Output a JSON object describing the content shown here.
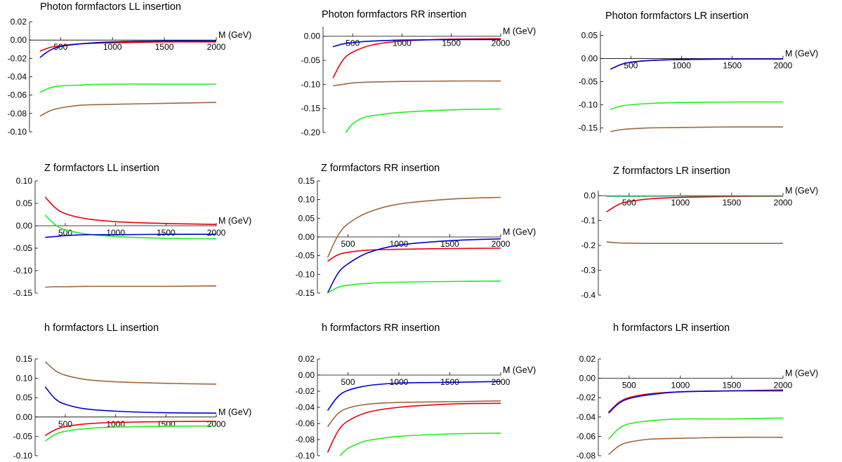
{
  "chart_data": [
    {
      "id": "p_ll",
      "type": "line",
      "title": "Photon formfactors LL insertion",
      "xlabel": "M (GeV)",
      "ylabel": "",
      "xlim": [
        200,
        2000
      ],
      "ylim": [
        -0.1,
        0.02
      ],
      "x_ticks": [
        "500",
        "1000",
        "1500",
        "2000"
      ],
      "y_ticks": [
        "0.02",
        "0.00",
        "-0.02",
        "-0.04",
        "-0.06",
        "-0.08",
        "-0.10"
      ],
      "series": [
        {
          "color": "#e8000b",
          "x": [
            300,
            400,
            500,
            700,
            1000,
            1500,
            2000
          ],
          "y": [
            -0.012,
            -0.008,
            -0.006,
            -0.004,
            -0.003,
            -0.002,
            -0.002
          ]
        },
        {
          "color": "#0000d0",
          "x": [
            300,
            400,
            500,
            700,
            1000,
            1500,
            2000
          ],
          "y": [
            -0.019,
            -0.011,
            -0.007,
            -0.004,
            -0.002,
            -0.001,
            -0.001
          ]
        },
        {
          "color": "#22ee22",
          "x": [
            300,
            400,
            500,
            700,
            1000,
            1500,
            2000
          ],
          "y": [
            -0.057,
            -0.052,
            -0.05,
            -0.049,
            -0.048,
            -0.048,
            -0.048
          ]
        },
        {
          "color": "#a0673c",
          "x": [
            300,
            400,
            500,
            700,
            1000,
            1500,
            2000
          ],
          "y": [
            -0.083,
            -0.077,
            -0.074,
            -0.071,
            -0.07,
            -0.069,
            -0.068
          ]
        }
      ]
    },
    {
      "id": "p_rr",
      "type": "line",
      "title": "Photon formfactors RR insertion",
      "xlabel": "M (GeV)",
      "ylabel": "",
      "xlim": [
        200,
        2000
      ],
      "ylim": [
        -0.2,
        0.02
      ],
      "x_ticks": [
        "500",
        "1000",
        "1500",
        "2000"
      ],
      "y_ticks": [
        "0.00",
        "-0.05",
        "-0.10",
        "-0.15",
        "-0.20"
      ],
      "series": [
        {
          "color": "#e8000b",
          "x": [
            300,
            400,
            500,
            700,
            1000,
            1500,
            2000
          ],
          "y": [
            -0.087,
            -0.05,
            -0.033,
            -0.018,
            -0.01,
            -0.006,
            -0.005
          ]
        },
        {
          "color": "#0000d0",
          "x": [
            300,
            400,
            500,
            700,
            1000,
            1500,
            2000
          ],
          "y": [
            -0.022,
            -0.016,
            -0.013,
            -0.01,
            -0.008,
            -0.007,
            -0.007
          ]
        },
        {
          "color": "#a0673c",
          "x": [
            300,
            400,
            500,
            700,
            1000,
            1500,
            2000
          ],
          "y": [
            -0.103,
            -0.1,
            -0.097,
            -0.095,
            -0.094,
            -0.093,
            -0.093
          ]
        },
        {
          "color": "#22ee22",
          "x": [
            430,
            500,
            600,
            700,
            1000,
            1500,
            2000
          ],
          "y": [
            -0.2,
            -0.182,
            -0.17,
            -0.165,
            -0.158,
            -0.153,
            -0.151
          ]
        }
      ]
    },
    {
      "id": "p_lr",
      "type": "line",
      "title": "Photon formfactors LR insertion",
      "xlabel": "M (GeV)",
      "ylabel": "",
      "xlim": [
        200,
        2000
      ],
      "ylim": [
        -0.16,
        0.06
      ],
      "x_ticks": [
        "500",
        "1000",
        "1500",
        "2000"
      ],
      "y_ticks": [
        "0.05",
        "0.00",
        "-0.05",
        "-0.10",
        "-0.15"
      ],
      "series": [
        {
          "color": "#e8000b",
          "x": [
            300,
            400,
            500,
            700,
            1000,
            1500,
            2000
          ],
          "y": [
            -0.023,
            -0.013,
            -0.008,
            -0.004,
            -0.002,
            -0.001,
            -0.001
          ]
        },
        {
          "color": "#0000d0",
          "x": [
            300,
            400,
            500,
            700,
            1000,
            1500,
            2000
          ],
          "y": [
            -0.023,
            -0.013,
            -0.008,
            -0.004,
            -0.002,
            -0.001,
            -0.001
          ]
        },
        {
          "color": "#22ee22",
          "x": [
            300,
            400,
            500,
            700,
            1000,
            1500,
            2000
          ],
          "y": [
            -0.11,
            -0.103,
            -0.1,
            -0.097,
            -0.095,
            -0.094,
            -0.094
          ]
        },
        {
          "color": "#a0673c",
          "x": [
            300,
            400,
            500,
            700,
            1000,
            1500,
            2000
          ],
          "y": [
            -0.158,
            -0.154,
            -0.152,
            -0.15,
            -0.149,
            -0.148,
            -0.148
          ]
        }
      ]
    },
    {
      "id": "z_ll",
      "type": "line",
      "title": "Z formfactors LL insertion",
      "xlabel": "M (GeV)",
      "ylabel": "",
      "xlim": [
        200,
        2000
      ],
      "ylim": [
        -0.15,
        0.1
      ],
      "x_ticks": [
        "500",
        "1000",
        "1500",
        "2000"
      ],
      "y_ticks": [
        "0.10",
        "0.05",
        "0.00",
        "-0.05",
        "-0.10",
        "-0.15"
      ],
      "series": [
        {
          "color": "#e8000b",
          "x": [
            300,
            400,
            500,
            700,
            1000,
            1500,
            2000
          ],
          "y": [
            0.064,
            0.04,
            0.027,
            0.016,
            0.009,
            0.005,
            0.003
          ]
        },
        {
          "color": "#22ee22",
          "x": [
            300,
            400,
            500,
            700,
            1000,
            1500,
            2000
          ],
          "y": [
            0.024,
            0.002,
            -0.009,
            -0.018,
            -0.024,
            -0.028,
            -0.029
          ]
        },
        {
          "color": "#0000d0",
          "x": [
            300,
            400,
            500,
            700,
            1000,
            1500,
            2000
          ],
          "y": [
            -0.026,
            -0.024,
            -0.022,
            -0.02,
            -0.02,
            -0.019,
            -0.019
          ]
        },
        {
          "color": "#a0673c",
          "x": [
            300,
            400,
            500,
            700,
            1000,
            1500,
            2000
          ],
          "y": [
            -0.137,
            -0.136,
            -0.136,
            -0.135,
            -0.135,
            -0.135,
            -0.134
          ]
        }
      ]
    },
    {
      "id": "z_rr",
      "type": "line",
      "title": "Z formfactors RR insertion",
      "xlabel": "M (GeV)",
      "ylabel": "",
      "xlim": [
        200,
        2000
      ],
      "ylim": [
        -0.15,
        0.15
      ],
      "x_ticks": [
        "500",
        "1000",
        "1500",
        "2000"
      ],
      "y_ticks": [
        "0.15",
        "0.10",
        "0.05",
        "0.00",
        "-0.05",
        "-0.10",
        "-0.15"
      ],
      "series": [
        {
          "color": "#a0673c",
          "x": [
            300,
            400,
            500,
            700,
            1000,
            1500,
            2000
          ],
          "y": [
            -0.055,
            0.003,
            0.035,
            0.066,
            0.088,
            0.101,
            0.106
          ]
        },
        {
          "color": "#e8000b",
          "x": [
            300,
            400,
            500,
            700,
            1000,
            1500,
            2000
          ],
          "y": [
            -0.065,
            -0.048,
            -0.041,
            -0.035,
            -0.033,
            -0.031,
            -0.03
          ]
        },
        {
          "color": "#0000d0",
          "x": [
            300,
            400,
            500,
            700,
            1000,
            1500,
            2000
          ],
          "y": [
            -0.15,
            -0.098,
            -0.072,
            -0.042,
            -0.022,
            -0.01,
            -0.005
          ]
        },
        {
          "color": "#22ee22",
          "x": [
            300,
            400,
            500,
            700,
            1000,
            1500,
            2000
          ],
          "y": [
            -0.15,
            -0.135,
            -0.129,
            -0.124,
            -0.121,
            -0.119,
            -0.118
          ]
        }
      ]
    },
    {
      "id": "z_lr",
      "type": "line",
      "title": "Z formfactors LR insertion",
      "xlabel": "M (GeV)",
      "ylabel": "",
      "xlim": [
        200,
        2000
      ],
      "ylim": [
        -0.4,
        0.02
      ],
      "x_ticks": [
        "500",
        "1000",
        "1500",
        "2000"
      ],
      "y_ticks": [
        "0.0",
        "-0.1",
        "-0.2",
        "-0.3",
        "-0.4"
      ],
      "series": [
        {
          "color": "#e8000b",
          "x": [
            280,
            400,
            500,
            700,
            1000,
            1500,
            2000
          ],
          "y": [
            -0.065,
            -0.035,
            -0.024,
            -0.013,
            -0.007,
            -0.003,
            -0.002
          ]
        },
        {
          "color": "#0000d0",
          "x": [
            280,
            500,
            1000,
            1500,
            2000
          ],
          "y": [
            -0.002,
            -0.002,
            -0.001,
            -0.001,
            -0.001
          ]
        },
        {
          "color": "#22ee22",
          "x": [
            280,
            500,
            1000,
            1500,
            2000
          ],
          "y": [
            -0.001,
            -0.001,
            0.0,
            0.0,
            0.0
          ]
        },
        {
          "color": "#a0673c",
          "x": [
            280,
            400,
            500,
            700,
            1000,
            1500,
            2000
          ],
          "y": [
            -0.186,
            -0.19,
            -0.191,
            -0.192,
            -0.192,
            -0.192,
            -0.192
          ]
        }
      ]
    },
    {
      "id": "h_ll",
      "type": "line",
      "title": "h formfactors LL insertion",
      "xlabel": "M (GeV)",
      "ylabel": "",
      "xlim": [
        200,
        2000
      ],
      "ylim": [
        -0.1,
        0.15
      ],
      "x_ticks": [
        "500",
        "1000",
        "1500",
        "2000"
      ],
      "y_ticks": [
        "0.15",
        "0.10",
        "0.05",
        "0.00",
        "-0.05",
        "-0.10"
      ],
      "series": [
        {
          "color": "#a0673c",
          "x": [
            300,
            400,
            500,
            700,
            1000,
            1500,
            2000
          ],
          "y": [
            0.143,
            0.12,
            0.108,
            0.097,
            0.091,
            0.087,
            0.085
          ]
        },
        {
          "color": "#0000d0",
          "x": [
            300,
            400,
            500,
            700,
            1000,
            1500,
            2000
          ],
          "y": [
            0.078,
            0.047,
            0.033,
            0.021,
            0.015,
            0.011,
            0.01
          ]
        },
        {
          "color": "#e8000b",
          "x": [
            300,
            400,
            500,
            700,
            1000,
            1500,
            2000
          ],
          "y": [
            -0.048,
            -0.033,
            -0.025,
            -0.018,
            -0.014,
            -0.012,
            -0.011
          ]
        },
        {
          "color": "#22ee22",
          "x": [
            300,
            400,
            500,
            700,
            1000,
            1500,
            2000
          ],
          "y": [
            -0.062,
            -0.045,
            -0.037,
            -0.03,
            -0.026,
            -0.024,
            -0.023
          ]
        }
      ]
    },
    {
      "id": "h_rr",
      "type": "line",
      "title": "h formfactors RR insertion",
      "xlabel": "M (GeV)",
      "ylabel": "",
      "xlim": [
        200,
        2000
      ],
      "ylim": [
        -0.1,
        0.02
      ],
      "x_ticks": [
        "500",
        "1000",
        "1500",
        "2000"
      ],
      "y_ticks": [
        "0.02",
        "0.00",
        "-0.02",
        "-0.04",
        "-0.06",
        "-0.08",
        "-0.10"
      ],
      "series": [
        {
          "color": "#0000d0",
          "x": [
            300,
            400,
            500,
            700,
            1000,
            1500,
            2000
          ],
          "y": [
            -0.044,
            -0.027,
            -0.019,
            -0.013,
            -0.01,
            -0.009,
            -0.008
          ]
        },
        {
          "color": "#a0673c",
          "x": [
            300,
            400,
            500,
            700,
            1000,
            1500,
            2000
          ],
          "y": [
            -0.064,
            -0.048,
            -0.041,
            -0.036,
            -0.034,
            -0.033,
            -0.032
          ]
        },
        {
          "color": "#e8000b",
          "x": [
            300,
            400,
            500,
            700,
            1000,
            1500,
            2000
          ],
          "y": [
            -0.096,
            -0.07,
            -0.057,
            -0.046,
            -0.04,
            -0.036,
            -0.035
          ]
        },
        {
          "color": "#22ee22",
          "x": [
            420,
            500,
            600,
            700,
            1000,
            1500,
            2000
          ],
          "y": [
            -0.1,
            -0.091,
            -0.085,
            -0.081,
            -0.076,
            -0.073,
            -0.072
          ]
        }
      ]
    },
    {
      "id": "h_lr",
      "type": "line",
      "title": "h formfactors LR insertion",
      "xlabel": "M (GeV)",
      "ylabel": "",
      "xlim": [
        200,
        2000
      ],
      "ylim": [
        -0.08,
        0.02
      ],
      "x_ticks": [
        "500",
        "1000",
        "1500",
        "2000"
      ],
      "y_ticks": [
        "0.02",
        "0.00",
        "-0.02",
        "-0.04",
        "-0.06",
        "-0.08"
      ],
      "series": [
        {
          "color": "#e8000b",
          "x": [
            300,
            400,
            500,
            700,
            1000,
            1500,
            2000
          ],
          "y": [
            -0.035,
            -0.025,
            -0.02,
            -0.016,
            -0.014,
            -0.013,
            -0.012
          ]
        },
        {
          "color": "#0000d0",
          "x": [
            300,
            400,
            500,
            700,
            1000,
            1500,
            2000
          ],
          "y": [
            -0.036,
            -0.026,
            -0.021,
            -0.017,
            -0.014,
            -0.013,
            -0.013
          ]
        },
        {
          "color": "#22ee22",
          "x": [
            300,
            400,
            500,
            700,
            1000,
            1500,
            2000
          ],
          "y": [
            -0.063,
            -0.052,
            -0.047,
            -0.044,
            -0.042,
            -0.042,
            -0.041
          ]
        },
        {
          "color": "#a0673c",
          "x": [
            300,
            400,
            500,
            700,
            1000,
            1500,
            2000
          ],
          "y": [
            -0.079,
            -0.07,
            -0.066,
            -0.063,
            -0.062,
            -0.061,
            -0.061
          ]
        }
      ]
    }
  ]
}
